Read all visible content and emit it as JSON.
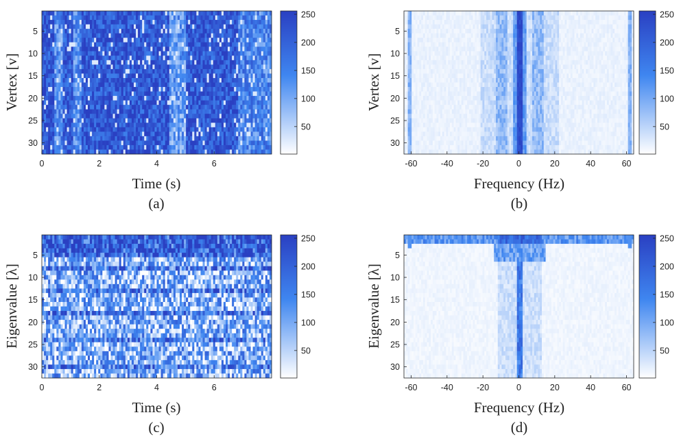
{
  "colormap": {
    "low": "#ffffff",
    "mid": "#3f86f0",
    "high": "#2a40c2"
  },
  "chart_data": [
    {
      "panel": "(a)",
      "type": "heatmap",
      "xlabel": "Time (s)",
      "ylabel": "Vertex [v]",
      "xlim": [
        0,
        8
      ],
      "ylim": [
        1,
        32
      ],
      "xticks": [
        0,
        2,
        4,
        6
      ],
      "yticks": [
        5,
        10,
        15,
        20,
        25,
        30
      ],
      "rows": 32,
      "cols": 110,
      "pattern": "time-vertex",
      "clim": [
        1,
        256
      ],
      "colorbar_ticks": [
        50,
        100,
        150,
        200,
        250
      ]
    },
    {
      "panel": "(b)",
      "type": "heatmap",
      "xlabel": "Frequency (Hz)",
      "ylabel": "Vertex [v]",
      "xlim": [
        -64,
        64
      ],
      "ylim": [
        1,
        32
      ],
      "xticks": [
        -60,
        -40,
        -20,
        0,
        20,
        40,
        60
      ],
      "yticks": [
        5,
        10,
        15,
        20,
        25,
        30
      ],
      "rows": 32,
      "cols": 120,
      "pattern": "freq-vertex",
      "clim": [
        1,
        256
      ],
      "colorbar_ticks": [
        50,
        100,
        150,
        200,
        250
      ]
    },
    {
      "panel": "(c)",
      "type": "heatmap",
      "xlabel": "Time (s)",
      "ylabel": "Eigenvalue [λ]",
      "xlim": [
        0,
        8
      ],
      "ylim": [
        1,
        32
      ],
      "xticks": [
        0,
        2,
        4,
        6
      ],
      "yticks": [
        5,
        10,
        15,
        20,
        25,
        30
      ],
      "rows": 32,
      "cols": 110,
      "pattern": "time-eigen",
      "clim": [
        1,
        256
      ],
      "colorbar_ticks": [
        50,
        100,
        150,
        200,
        250
      ]
    },
    {
      "panel": "(d)",
      "type": "heatmap",
      "xlabel": "Frequency (Hz)",
      "ylabel": "Eigenvalue [λ]",
      "xlim": [
        -64,
        64
      ],
      "ylim": [
        1,
        32
      ],
      "xticks": [
        -60,
        -40,
        -20,
        0,
        20,
        40,
        60
      ],
      "yticks": [
        5,
        10,
        15,
        20,
        25,
        30
      ],
      "rows": 32,
      "cols": 120,
      "pattern": "freq-eigen",
      "clim": [
        1,
        256
      ],
      "colorbar_ticks": [
        50,
        100,
        150,
        200,
        250
      ]
    }
  ]
}
